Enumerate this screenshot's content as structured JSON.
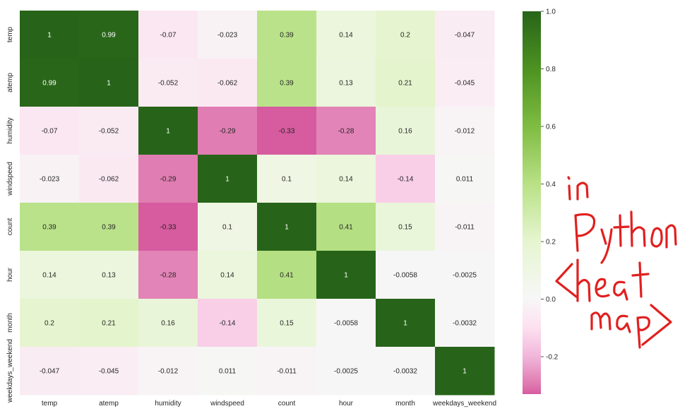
{
  "chart_data": {
    "type": "heatmap",
    "title": "",
    "xlabel": "",
    "ylabel": "",
    "x_categories": [
      "temp",
      "atemp",
      "humidity",
      "windspeed",
      "count",
      "hour",
      "month",
      "weekdays_weekend"
    ],
    "y_categories": [
      "temp",
      "atemp",
      "humidity",
      "windspeed",
      "count",
      "hour",
      "month",
      "weekdays_weekend"
    ],
    "values": [
      [
        1,
        0.99,
        -0.07,
        -0.023,
        0.39,
        0.14,
        0.2,
        -0.047
      ],
      [
        0.99,
        1,
        -0.052,
        -0.062,
        0.39,
        0.13,
        0.21,
        -0.045
      ],
      [
        -0.07,
        -0.052,
        1,
        -0.29,
        -0.33,
        -0.28,
        0.16,
        -0.012
      ],
      [
        -0.023,
        -0.062,
        -0.29,
        1,
        0.1,
        0.14,
        -0.14,
        0.011
      ],
      [
        0.39,
        0.39,
        -0.33,
        0.1,
        1,
        0.41,
        0.15,
        -0.011
      ],
      [
        0.14,
        0.13,
        -0.28,
        0.14,
        0.41,
        1,
        -0.0058,
        -0.0025
      ],
      [
        0.2,
        0.21,
        0.16,
        -0.14,
        0.15,
        -0.0058,
        1,
        -0.0032
      ],
      [
        -0.047,
        -0.045,
        -0.012,
        0.011,
        -0.011,
        -0.0025,
        -0.0032,
        1
      ]
    ],
    "colormap": "PiYG",
    "annotated": true,
    "colorbar": {
      "range": [
        -0.33,
        1.0
      ],
      "ticks": [
        "1.0",
        "0.8",
        "0.6",
        "0.4",
        "0.2",
        "0.0",
        "-0.2"
      ],
      "tick_values": [
        1.0,
        0.8,
        0.6,
        0.4,
        0.2,
        0.0,
        -0.2
      ],
      "placement": "right"
    },
    "annotation": {
      "text": "in Python <heat map>",
      "color": "#e0201f"
    }
  }
}
